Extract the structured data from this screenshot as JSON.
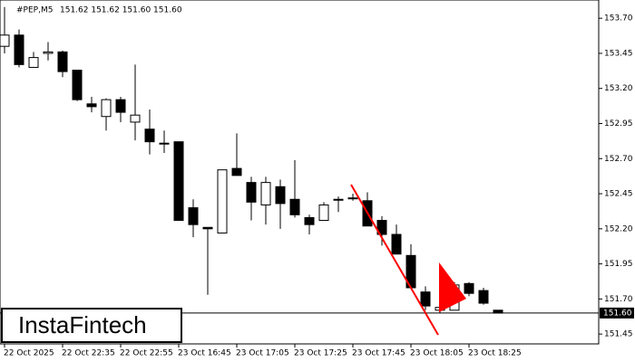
{
  "chart_data": {
    "type": "candlestick",
    "title": "#PEP,M5",
    "subtitle": "151.62 151.62 151.60 151.60",
    "watermark": "InstaFintech",
    "categories": [
      "22 Oct 2025",
      null,
      null,
      null,
      "22 Oct 22:35",
      null,
      null,
      null,
      "22 Oct 22:55",
      null,
      null,
      null,
      "23 Oct 16:45",
      null,
      null,
      null,
      "23 Oct 17:05",
      null,
      null,
      null,
      "23 Oct 17:25",
      null,
      null,
      null,
      "23 Oct 17:45",
      null,
      null,
      null,
      "23 Oct 18:05",
      null,
      null,
      null,
      "23 Oct 18:25",
      null,
      null
    ],
    "open": [
      153.5,
      153.58,
      153.35,
      153.45,
      153.46,
      153.33,
      153.09,
      153.0,
      153.12,
      152.96,
      152.91,
      152.81,
      152.82,
      152.35,
      152.21,
      152.17,
      152.63,
      152.53,
      152.37,
      152.5,
      152.41,
      152.28,
      152.26,
      152.41,
      152.42,
      152.4,
      152.26,
      152.16,
      152.01,
      151.75,
      151.62,
      151.62,
      151.81,
      151.76,
      151.62
    ],
    "high": [
      153.78,
      153.62,
      153.46,
      153.53,
      153.47,
      153.33,
      153.14,
      153.13,
      153.14,
      153.37,
      153.05,
      152.9,
      152.82,
      152.41,
      152.21,
      152.62,
      152.88,
      152.57,
      152.57,
      152.55,
      152.69,
      152.3,
      152.39,
      152.43,
      152.45,
      152.46,
      152.29,
      152.23,
      152.09,
      151.79,
      151.65,
      151.82,
      151.82,
      151.78,
      151.62
    ],
    "low": [
      153.45,
      153.35,
      153.35,
      153.4,
      153.28,
      153.11,
      153.03,
      152.9,
      152.96,
      152.83,
      152.73,
      152.74,
      152.26,
      152.14,
      151.73,
      152.17,
      152.58,
      152.26,
      152.23,
      152.2,
      152.28,
      152.16,
      152.26,
      152.32,
      152.4,
      152.22,
      152.08,
      152.02,
      151.78,
      151.62,
      151.6,
      151.62,
      151.72,
      151.66,
      151.6
    ],
    "close": [
      153.58,
      153.37,
      153.42,
      153.46,
      153.32,
      153.12,
      153.07,
      153.12,
      153.03,
      153.01,
      152.82,
      152.81,
      152.26,
      152.23,
      152.2,
      152.62,
      152.58,
      152.39,
      152.53,
      152.38,
      152.3,
      152.23,
      152.37,
      152.41,
      152.42,
      152.22,
      152.16,
      152.02,
      151.78,
      151.65,
      151.64,
      151.8,
      151.74,
      151.67,
      151.6
    ],
    "up_color": "#ffffff",
    "down_color": "#000000",
    "ylim": [
      151.38,
      153.83
    ],
    "yticks": [
      {
        "value": 153.7,
        "label": "153.70"
      },
      153.45,
      {
        "value": 153.2,
        "label": "153.20"
      },
      152.95,
      {
        "value": 152.7,
        "label": "152.70"
      },
      152.45,
      {
        "value": 152.2,
        "label": "152.20"
      },
      151.95,
      {
        "value": 151.7,
        "label": "151.70"
      },
      151.45
    ],
    "last_price": {
      "value": 151.6,
      "label": "151.60"
    }
  }
}
